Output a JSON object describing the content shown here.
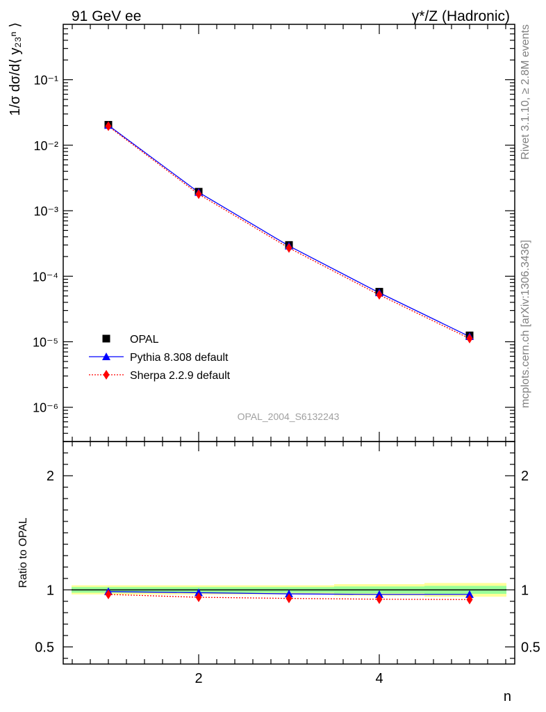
{
  "labels": {
    "top_left": "91 GeV ee",
    "top_right": "γ*/Z (Hadronic)",
    "side_rivet": "Rivet 3.1.10, ≥ 2.8M events",
    "side_mcplots": "mcplots.cern.ch [arXiv:1306.3436]",
    "watermark": "OPAL_2004_S6132243"
  },
  "chart_data": [
    {
      "type": "line",
      "panel": "main",
      "ylabel": "1/σ dσ/d⟨ y₂₃ⁿ ⟩",
      "yscale": "log",
      "xlim": [
        0.5,
        5.5
      ],
      "ylim": [
        3e-07,
        0.7
      ],
      "yticks": [
        {
          "value": 1e-06,
          "label": "10⁻⁶"
        },
        {
          "value": 1e-05,
          "label": "10⁻⁵"
        },
        {
          "value": 0.0001,
          "label": "10⁻⁴"
        },
        {
          "value": 0.001,
          "label": "10⁻³"
        },
        {
          "value": 0.01,
          "label": "10⁻²"
        },
        {
          "value": 0.1,
          "label": "10⁻¹"
        }
      ],
      "x": [
        1,
        2,
        3,
        4,
        5
      ],
      "series": [
        {
          "name": "OPAL",
          "style": "square",
          "color": "#000000",
          "values": [
            0.0205,
            0.00195,
            0.0003,
            5.8e-05,
            1.25e-05
          ]
        },
        {
          "name": "Pythia 8.308 default",
          "style": "line-triangle",
          "color": "#0000ff",
          "values": [
            0.0201,
            0.00191,
            0.00029,
            5.6e-05,
            1.2e-05
          ]
        },
        {
          "name": "Sherpa 2.2.9 default",
          "style": "dotted-diamond",
          "color": "#ff0000",
          "values": [
            0.0195,
            0.00179,
            0.00027,
            5.2e-05,
            1.12e-05
          ]
        }
      ],
      "legend": "bottom-left"
    },
    {
      "type": "line",
      "panel": "ratio",
      "xlabel": "n",
      "ylabel": "Ratio to OPAL",
      "xlim": [
        0.5,
        5.5
      ],
      "ylim": [
        0.35,
        2.3
      ],
      "xticks": [
        {
          "value": 2,
          "label": "2"
        },
        {
          "value": 4,
          "label": "4"
        }
      ],
      "yticks": [
        {
          "value": 0.5,
          "label": "0.5"
        },
        {
          "value": 1,
          "label": "1"
        },
        {
          "value": 2,
          "label": "2"
        }
      ],
      "x": [
        1,
        2,
        3,
        4,
        5
      ],
      "bands": [
        {
          "name": "OPAL total uncertainty",
          "color": "#ffff99",
          "bins": [
            [
              0.5,
              1.5,
              0.96,
              1.04
            ],
            [
              1.5,
              2.5,
              0.96,
              1.04
            ],
            [
              2.5,
              3.5,
              0.96,
              1.04
            ],
            [
              3.5,
              4.5,
              0.95,
              1.05
            ],
            [
              4.5,
              5.5,
              0.94,
              1.06
            ]
          ]
        },
        {
          "name": "OPAL stat uncertainty",
          "color": "#99ff99",
          "bins": [
            [
              0.5,
              1.5,
              0.975,
              1.025
            ],
            [
              1.5,
              2.5,
              0.975,
              1.025
            ],
            [
              2.5,
              3.5,
              0.975,
              1.025
            ],
            [
              3.5,
              4.5,
              0.97,
              1.03
            ],
            [
              4.5,
              5.5,
              0.965,
              1.035
            ]
          ]
        }
      ],
      "series": [
        {
          "name": "Pythia 8.308 default",
          "style": "line-triangle",
          "color": "#0000ff",
          "values": [
            0.985,
            0.975,
            0.965,
            0.96,
            0.96
          ]
        },
        {
          "name": "Sherpa 2.2.9 default",
          "style": "dotted-diamond",
          "color": "#ff0000",
          "values": [
            0.96,
            0.935,
            0.925,
            0.918,
            0.915
          ]
        }
      ]
    }
  ]
}
